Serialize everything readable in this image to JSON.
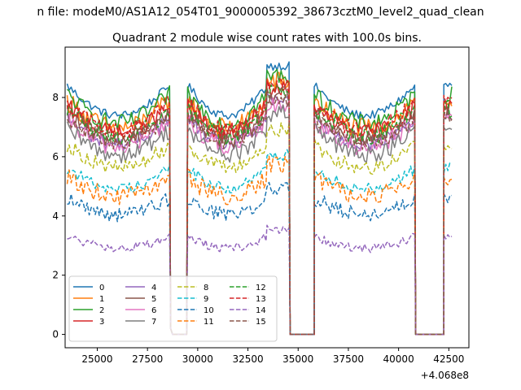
{
  "suptitle": "n file: modeM0/AS1A12_054T01_9000005392_38673cztM0_level2_quad_clean",
  "chart_data": {
    "type": "line",
    "title": "Quadrant 2 module wise count rates with 100.0s bins.",
    "xlabel": "",
    "ylabel": "",
    "x_offset_label": "+4.068e8",
    "xlim": [
      23400,
      43500
    ],
    "ylim": [
      -0.45,
      9.7
    ],
    "x_ticks": [
      25000,
      27500,
      30000,
      32500,
      35000,
      37500,
      40000,
      42500
    ],
    "x_tick_labels": [
      "25000",
      "27500",
      "30000",
      "32500",
      "35000",
      "37500",
      "40000",
      "42500"
    ],
    "y_ticks": [
      0,
      2,
      4,
      6,
      8
    ],
    "y_tick_labels": [
      "0",
      "2",
      "4",
      "6",
      "8"
    ],
    "segments": [
      {
        "start": 23500,
        "end": 28600,
        "level": 1.0,
        "trend": "dip"
      },
      {
        "start": 29500,
        "end": 33450,
        "level": 1.0,
        "trend": "dip"
      },
      {
        "start": 33450,
        "end": 34600,
        "level": 1.08,
        "trend": "flat"
      },
      {
        "start": 34600,
        "end": 35800,
        "level": 0,
        "trend": "gap"
      },
      {
        "start": 35800,
        "end": 40850,
        "level": 1.0,
        "trend": "dip"
      },
      {
        "start": 40850,
        "end": 42250,
        "level": 0,
        "trend": "gap"
      },
      {
        "start": 42250,
        "end": 42700,
        "level": 1.0,
        "trend": "flat"
      }
    ],
    "series": [
      {
        "name": "0",
        "color": "#1f77b4",
        "dash": "solid",
        "mean": 8.4,
        "noise": 0.15
      },
      {
        "name": "1",
        "color": "#ff7f0e",
        "dash": "solid",
        "mean": 7.9,
        "noise": 0.35
      },
      {
        "name": "2",
        "color": "#2ca02c",
        "dash": "solid",
        "mean": 8.1,
        "noise": 0.3
      },
      {
        "name": "3",
        "color": "#d62728",
        "dash": "solid",
        "mean": 7.7,
        "noise": 0.3
      },
      {
        "name": "4",
        "color": "#9467bd",
        "dash": "solid",
        "mean": 7.3,
        "noise": 0.25
      },
      {
        "name": "5",
        "color": "#8c564b",
        "dash": "solid",
        "mean": 7.5,
        "noise": 0.3
      },
      {
        "name": "6",
        "color": "#e377c2",
        "dash": "solid",
        "mean": 7.2,
        "noise": 0.3
      },
      {
        "name": "7",
        "color": "#7f7f7f",
        "dash": "solid",
        "mean": 6.9,
        "noise": 0.3
      },
      {
        "name": "8",
        "color": "#bcbd22",
        "dash": "dashed",
        "mean": 6.4,
        "noise": 0.25
      },
      {
        "name": "9",
        "color": "#17becf",
        "dash": "dashed",
        "mean": 5.6,
        "noise": 0.2
      },
      {
        "name": "10",
        "color": "#1f77b4",
        "dash": "dashed",
        "mean": 4.6,
        "noise": 0.25
      },
      {
        "name": "11",
        "color": "#ff7f0e",
        "dash": "dashed",
        "mean": 5.3,
        "noise": 0.3
      },
      {
        "name": "12",
        "color": "#2ca02c",
        "dash": "dashed",
        "mean": 7.6,
        "noise": 0.3
      },
      {
        "name": "13",
        "color": "#d62728",
        "dash": "dashed",
        "mean": 7.8,
        "noise": 0.3
      },
      {
        "name": "14",
        "color": "#9467bd",
        "dash": "dashed",
        "mean": 3.3,
        "noise": 0.15
      },
      {
        "name": "15",
        "color": "#8c564b",
        "dash": "dashed",
        "mean": 7.4,
        "noise": 0.3
      }
    ],
    "legend_position": "lower-left",
    "legend_columns": 4
  }
}
